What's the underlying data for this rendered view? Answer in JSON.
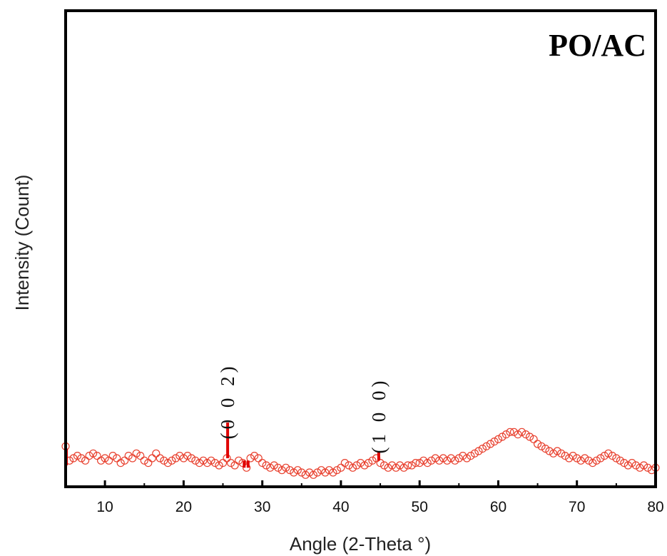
{
  "chart_data": {
    "type": "scatter",
    "panel_label": "PO/AC",
    "xlabel": "Angle (2-Theta °)",
    "ylabel": "Intensity (Count)",
    "xlim": [
      5,
      80
    ],
    "ylim": [
      0,
      100
    ],
    "x_ticks": [
      10,
      20,
      30,
      40,
      50,
      60,
      70,
      80
    ],
    "grid": false,
    "marker": "open-circle",
    "marker_color": "#e8402e",
    "peak_color": "#e00000",
    "series": [
      {
        "values": [
          [
            5.0,
            8.5
          ],
          [
            5.5,
            5.5
          ],
          [
            6.0,
            6.0
          ],
          [
            6.5,
            6.5
          ],
          [
            7.0,
            6.0
          ],
          [
            7.5,
            5.5
          ],
          [
            8.0,
            6.5
          ],
          [
            8.5,
            7.0
          ],
          [
            9.0,
            6.5
          ],
          [
            9.5,
            5.5
          ],
          [
            10.0,
            6.0
          ],
          [
            10.5,
            5.5
          ],
          [
            11.0,
            6.5
          ],
          [
            11.5,
            6.0
          ],
          [
            12.0,
            5.0
          ],
          [
            12.5,
            5.5
          ],
          [
            13.0,
            6.5
          ],
          [
            13.5,
            6.0
          ],
          [
            14.0,
            7.0
          ],
          [
            14.5,
            6.5
          ],
          [
            15.0,
            5.5
          ],
          [
            15.5,
            5.0
          ],
          [
            16.0,
            6.0
          ],
          [
            16.5,
            7.0
          ],
          [
            17.0,
            6.0
          ],
          [
            17.5,
            5.5
          ],
          [
            18.0,
            5.0
          ],
          [
            18.5,
            5.5
          ],
          [
            19.0,
            6.0
          ],
          [
            19.5,
            6.5
          ],
          [
            20.0,
            6.0
          ],
          [
            20.5,
            6.5
          ],
          [
            21.0,
            6.0
          ],
          [
            21.5,
            5.5
          ],
          [
            22.0,
            5.0
          ],
          [
            22.5,
            5.5
          ],
          [
            23.0,
            5.0
          ],
          [
            23.5,
            5.5
          ],
          [
            24.0,
            5.0
          ],
          [
            24.5,
            4.5
          ],
          [
            25.0,
            5.0
          ],
          [
            25.5,
            6.0
          ],
          [
            26.0,
            5.0
          ],
          [
            26.5,
            4.5
          ],
          [
            27.0,
            5.5
          ],
          [
            27.5,
            5.0
          ],
          [
            28.0,
            4.0
          ],
          [
            28.5,
            6.0
          ],
          [
            29.0,
            6.5
          ],
          [
            29.5,
            6.0
          ],
          [
            30.0,
            5.0
          ],
          [
            30.5,
            4.5
          ],
          [
            31.0,
            4.0
          ],
          [
            31.5,
            4.5
          ],
          [
            32.0,
            4.0
          ],
          [
            32.5,
            3.5
          ],
          [
            33.0,
            4.0
          ],
          [
            33.5,
            3.5
          ],
          [
            34.0,
            3.0
          ],
          [
            34.5,
            3.5
          ],
          [
            35.0,
            3.0
          ],
          [
            35.5,
            2.5
          ],
          [
            36.0,
            3.0
          ],
          [
            36.5,
            2.5
          ],
          [
            37.0,
            3.0
          ],
          [
            37.5,
            3.5
          ],
          [
            38.0,
            3.0
          ],
          [
            38.5,
            3.5
          ],
          [
            39.0,
            3.0
          ],
          [
            39.5,
            3.5
          ],
          [
            40.0,
            4.0
          ],
          [
            40.5,
            5.0
          ],
          [
            41.0,
            4.5
          ],
          [
            41.5,
            4.0
          ],
          [
            42.0,
            4.5
          ],
          [
            42.5,
            5.0
          ],
          [
            43.0,
            4.5
          ],
          [
            43.5,
            5.0
          ],
          [
            44.0,
            5.5
          ],
          [
            44.5,
            6.0
          ],
          [
            45.0,
            5.0
          ],
          [
            45.5,
            4.5
          ],
          [
            46.0,
            4.0
          ],
          [
            46.5,
            4.5
          ],
          [
            47.0,
            4.0
          ],
          [
            47.5,
            4.5
          ],
          [
            48.0,
            4.0
          ],
          [
            48.5,
            4.5
          ],
          [
            49.0,
            4.5
          ],
          [
            49.5,
            5.0
          ],
          [
            50.0,
            5.0
          ],
          [
            50.5,
            5.5
          ],
          [
            51.0,
            5.0
          ],
          [
            51.5,
            5.5
          ],
          [
            52.0,
            6.0
          ],
          [
            52.5,
            5.5
          ],
          [
            53.0,
            6.0
          ],
          [
            53.5,
            5.5
          ],
          [
            54.0,
            6.0
          ],
          [
            54.5,
            5.5
          ],
          [
            55.0,
            6.0
          ],
          [
            55.5,
            6.5
          ],
          [
            56.0,
            6.0
          ],
          [
            56.5,
            6.5
          ],
          [
            57.0,
            7.0
          ],
          [
            57.5,
            7.5
          ],
          [
            58.0,
            8.0
          ],
          [
            58.5,
            8.5
          ],
          [
            59.0,
            9.0
          ],
          [
            59.5,
            9.5
          ],
          [
            60.0,
            10.0
          ],
          [
            60.5,
            10.5
          ],
          [
            61.0,
            11.0
          ],
          [
            61.5,
            11.5
          ],
          [
            62.0,
            11.5
          ],
          [
            62.5,
            11.0
          ],
          [
            63.0,
            11.5
          ],
          [
            63.5,
            11.0
          ],
          [
            64.0,
            10.5
          ],
          [
            64.5,
            10.0
          ],
          [
            65.0,
            9.0
          ],
          [
            65.5,
            8.5
          ],
          [
            66.0,
            8.0
          ],
          [
            66.5,
            7.5
          ],
          [
            67.0,
            7.0
          ],
          [
            67.5,
            7.5
          ],
          [
            68.0,
            7.0
          ],
          [
            68.5,
            6.5
          ],
          [
            69.0,
            6.0
          ],
          [
            69.5,
            6.5
          ],
          [
            70.0,
            6.0
          ],
          [
            70.5,
            5.5
          ],
          [
            71.0,
            6.0
          ],
          [
            71.5,
            5.5
          ],
          [
            72.0,
            5.0
          ],
          [
            72.5,
            5.5
          ],
          [
            73.0,
            6.0
          ],
          [
            73.5,
            6.5
          ],
          [
            74.0,
            7.0
          ],
          [
            74.5,
            6.5
          ],
          [
            75.0,
            6.0
          ],
          [
            75.5,
            5.5
          ],
          [
            76.0,
            5.0
          ],
          [
            76.5,
            4.5
          ],
          [
            77.0,
            5.0
          ],
          [
            77.5,
            4.5
          ],
          [
            78.0,
            4.0
          ],
          [
            78.5,
            4.5
          ],
          [
            79.0,
            4.0
          ],
          [
            79.5,
            3.5
          ],
          [
            80.0,
            4.0
          ]
        ]
      }
    ],
    "peaks": [
      {
        "x": 5.1,
        "y_top": 8.0,
        "y_base": 4.5
      },
      {
        "x": 25.6,
        "y_top": 13.5,
        "y_base": 6.0
      },
      {
        "x": 27.7,
        "y_top": 5.5,
        "y_base": 4.0
      },
      {
        "x": 28.2,
        "y_top": 5.5,
        "y_base": 4.0
      },
      {
        "x": 44.8,
        "y_top": 7.5,
        "y_base": 5.5
      }
    ],
    "annotations": [
      {
        "text": "(0 0 2)",
        "x": 25.6,
        "y": 18.0
      },
      {
        "text": "(1 0 0)",
        "x": 44.8,
        "y": 15.0
      }
    ]
  }
}
